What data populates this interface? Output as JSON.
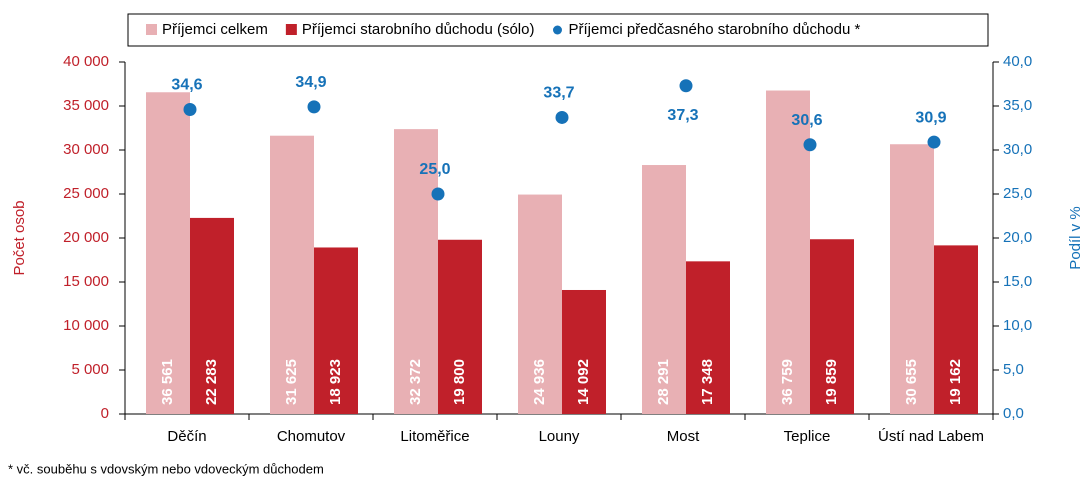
{
  "chart_data": {
    "type": "bar",
    "categories": [
      "Děčín",
      "Chomutov",
      "Litoměřice",
      "Louny",
      "Most",
      "Teplice",
      "Ústí nad Labem"
    ],
    "series": [
      {
        "name": "Příjemci celkem",
        "color": "#e8b0b4",
        "values": [
          36561,
          31625,
          32372,
          24936,
          28291,
          36759,
          30655
        ],
        "value_labels": [
          "36 561",
          "31 625",
          "32 372",
          "24 936",
          "28 291",
          "36 759",
          "30 655"
        ]
      },
      {
        "name": "Příjemci starobního důchodu (sólo)",
        "color": "#c0202a",
        "values": [
          22283,
          18923,
          19800,
          14092,
          17348,
          19859,
          19162
        ],
        "value_labels": [
          "22 283",
          "18 923",
          "19 800",
          "14 092",
          "17 348",
          "19 859",
          "19 162"
        ]
      },
      {
        "name": "Příjemci předčasného starobního důchodu *",
        "color": "#1672b8",
        "type": "scatter",
        "axis": "y2",
        "values": [
          34.6,
          34.9,
          25.0,
          33.7,
          37.3,
          30.6,
          30.9
        ],
        "value_labels": [
          "34,6",
          "34,9",
          "25,0",
          "33,7",
          "37,3",
          "30,6",
          "30,9"
        ]
      }
    ],
    "ylabel": "Počet osob",
    "y2label": "Podíl v %",
    "ylim": [
      0,
      40000
    ],
    "yticks": [
      0,
      {
        "value": 5000,
        "label": "5 000"
      },
      {
        "value": 10000,
        "label": "10 000"
      },
      {
        "value": 15000,
        "label": "15 000"
      },
      {
        "value": 20000,
        "label": "20 000"
      },
      {
        "value": 25000,
        "label": "25 000"
      },
      {
        "value": 30000,
        "label": "30 000"
      },
      {
        "value": 35000,
        "label": "35 000"
      },
      {
        "value": 40000,
        "label": "40 000"
      }
    ],
    "y2lim": [
      0,
      40
    ],
    "y2ticks": [
      {
        "value": 0,
        "label": "0,0"
      },
      {
        "value": 5,
        "label": "5,0"
      },
      {
        "value": 10,
        "label": "10,0"
      },
      {
        "value": 15,
        "label": "15,0"
      },
      {
        "value": 20,
        "label": "20,0"
      },
      {
        "value": 25,
        "label": "25,0"
      },
      {
        "value": 30,
        "label": "30,0"
      },
      {
        "value": 35,
        "label": "35,0"
      },
      {
        "value": 40,
        "label": "40,0"
      }
    ],
    "grid": true,
    "legend": "top",
    "footnote": "* vč. souběhu s vdovským nebo vdoveckým důchodem"
  }
}
